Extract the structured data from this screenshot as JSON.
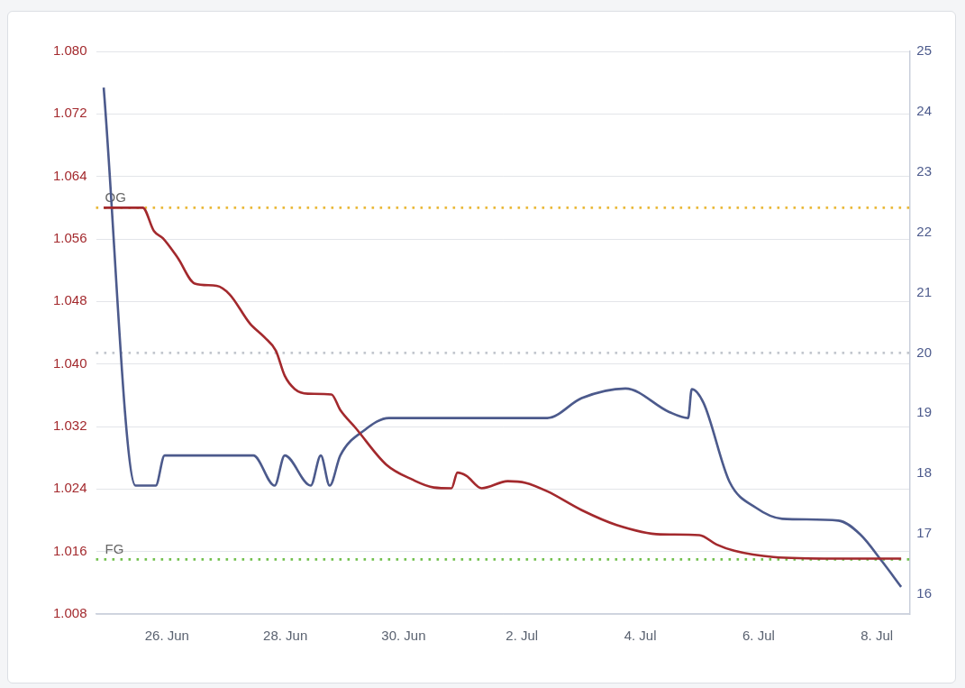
{
  "chart_data": {
    "type": "line",
    "xlim": [
      24.8,
      38.55
    ],
    "xticks": [
      {
        "value": 26,
        "label": "26. Jun"
      },
      {
        "value": 28,
        "label": "28. Jun"
      },
      {
        "value": 30,
        "label": "30. Jun"
      },
      {
        "value": 32,
        "label": "2. Jul"
      },
      {
        "value": 34,
        "label": "4. Jul"
      },
      {
        "value": 36,
        "label": "6. Jul"
      },
      {
        "value": 38,
        "label": "8. Jul"
      }
    ],
    "ylim": [
      1.008,
      1.08
    ],
    "yticks": [
      1.008,
      1.016,
      1.024,
      1.032,
      {
        "value": 1.04,
        "label": "1.040"
      },
      1.048,
      1.056,
      1.064,
      1.072,
      {
        "value": 1.08,
        "label": "1.080"
      }
    ],
    "y2lim": [
      15.67,
      25
    ],
    "y2ticks": [
      16,
      17,
      18,
      19,
      20,
      21,
      22,
      23,
      24,
      25
    ],
    "grid": true,
    "annotations": [
      {
        "label": "OG",
        "value": 1.06,
        "axis": "y",
        "color": "#eab93a",
        "line_style": "dotted"
      },
      {
        "label": "FG",
        "value": 1.015,
        "axis": "y",
        "color": "#72c04e",
        "line_style": "dotted"
      },
      {
        "value": 20,
        "axis": "y2",
        "color": "#c3c7ce",
        "line_style": "dotted"
      }
    ],
    "series": [
      {
        "color": "#a3292d",
        "axis": "y",
        "x": [
          24.93,
          25.59,
          25.78,
          25.93,
          26.18,
          26.47,
          26.84,
          27.06,
          27.4,
          27.65,
          27.84,
          27.99,
          28.16,
          28.38,
          28.78,
          28.93,
          29.19,
          29.71,
          30.15,
          30.51,
          30.81,
          30.91,
          31.06,
          31.32,
          31.76,
          32.06,
          32.43,
          33.01,
          33.6,
          34.34,
          35.0,
          35.29,
          35.59,
          36.25,
          37.28,
          38.41
        ],
        "values": [
          1.06,
          1.06,
          1.057,
          1.0561,
          1.0536,
          1.0503,
          1.05,
          1.0489,
          1.0452,
          1.0434,
          1.0417,
          1.0385,
          1.0368,
          1.0362,
          1.0361,
          1.0341,
          1.0318,
          1.0271,
          1.0252,
          1.0242,
          1.0241,
          1.0261,
          1.0257,
          1.0241,
          1.025,
          1.0248,
          1.0237,
          1.0213,
          1.0194,
          1.0182,
          1.0181,
          1.0169,
          1.0161,
          1.0153,
          1.0151,
          1.0151
        ]
      },
      {
        "color": "#4c5a8c",
        "axis": "y2",
        "x": [
          24.93,
          25.47,
          25.81,
          25.96,
          27.46,
          27.82,
          27.99,
          28.43,
          28.6,
          28.75,
          28.93,
          29.34,
          29.75,
          32.43,
          33.01,
          33.75,
          34.49,
          34.81,
          34.87,
          35.07,
          35.51,
          35.96,
          36.4,
          37.35,
          37.72,
          38.09,
          38.41
        ],
        "values": [
          24.4,
          17.8,
          17.8,
          18.3,
          18.3,
          17.8,
          18.3,
          17.8,
          18.3,
          17.8,
          18.3,
          18.72,
          18.92,
          18.92,
          19.25,
          19.41,
          19.02,
          18.92,
          19.4,
          19.17,
          17.86,
          17.43,
          17.25,
          17.22,
          16.99,
          16.54,
          16.12
        ]
      }
    ]
  }
}
